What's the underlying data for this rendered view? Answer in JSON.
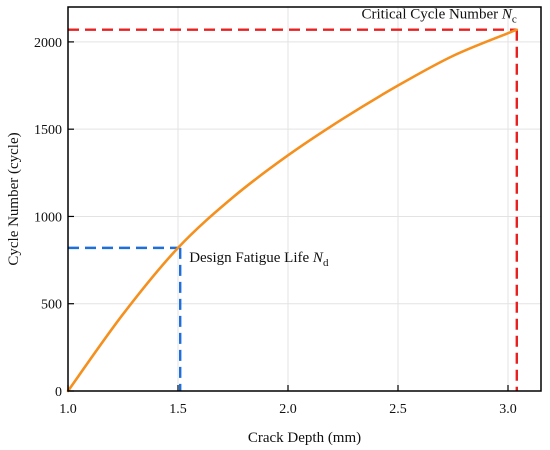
{
  "chart_data": {
    "type": "line",
    "xlabel": "Crack Depth (mm)",
    "ylabel": "Cycle Number (cycle)",
    "xlim": [
      1.0,
      3.15
    ],
    "ylim": [
      0,
      2200
    ],
    "xticks": [
      1.0,
      1.5,
      2.0,
      2.5,
      3.0
    ],
    "xtick_labels": [
      "1.0",
      "1.5",
      "2.0",
      "2.5",
      "3.0"
    ],
    "yticks": [
      0,
      500,
      1000,
      1500,
      2000
    ],
    "ytick_labels": [
      "0",
      "500",
      "1000",
      "1500",
      "2000"
    ],
    "grid": true,
    "series": [
      {
        "color": "#F5901E",
        "x": [
          1.0,
          1.25,
          1.5,
          1.75,
          2.0,
          2.25,
          2.5,
          2.75,
          3.0,
          3.04
        ],
        "y": [
          0,
          440,
          820,
          1110,
          1350,
          1560,
          1750,
          1920,
          2050,
          2070
        ]
      }
    ],
    "annotations": [
      {
        "label_main": "Design Fatigue Life ",
        "label_symbol": "N",
        "label_sub": "d",
        "x": 1.51,
        "y": 820,
        "line_color": "#1E6FD9",
        "position": "right of point"
      },
      {
        "label_main": "Critical Cycle Number ",
        "label_symbol": "N",
        "label_sub": "c",
        "x": 3.04,
        "y": 2070,
        "line_color": "#E82020",
        "position": "above-left of point"
      }
    ]
  }
}
